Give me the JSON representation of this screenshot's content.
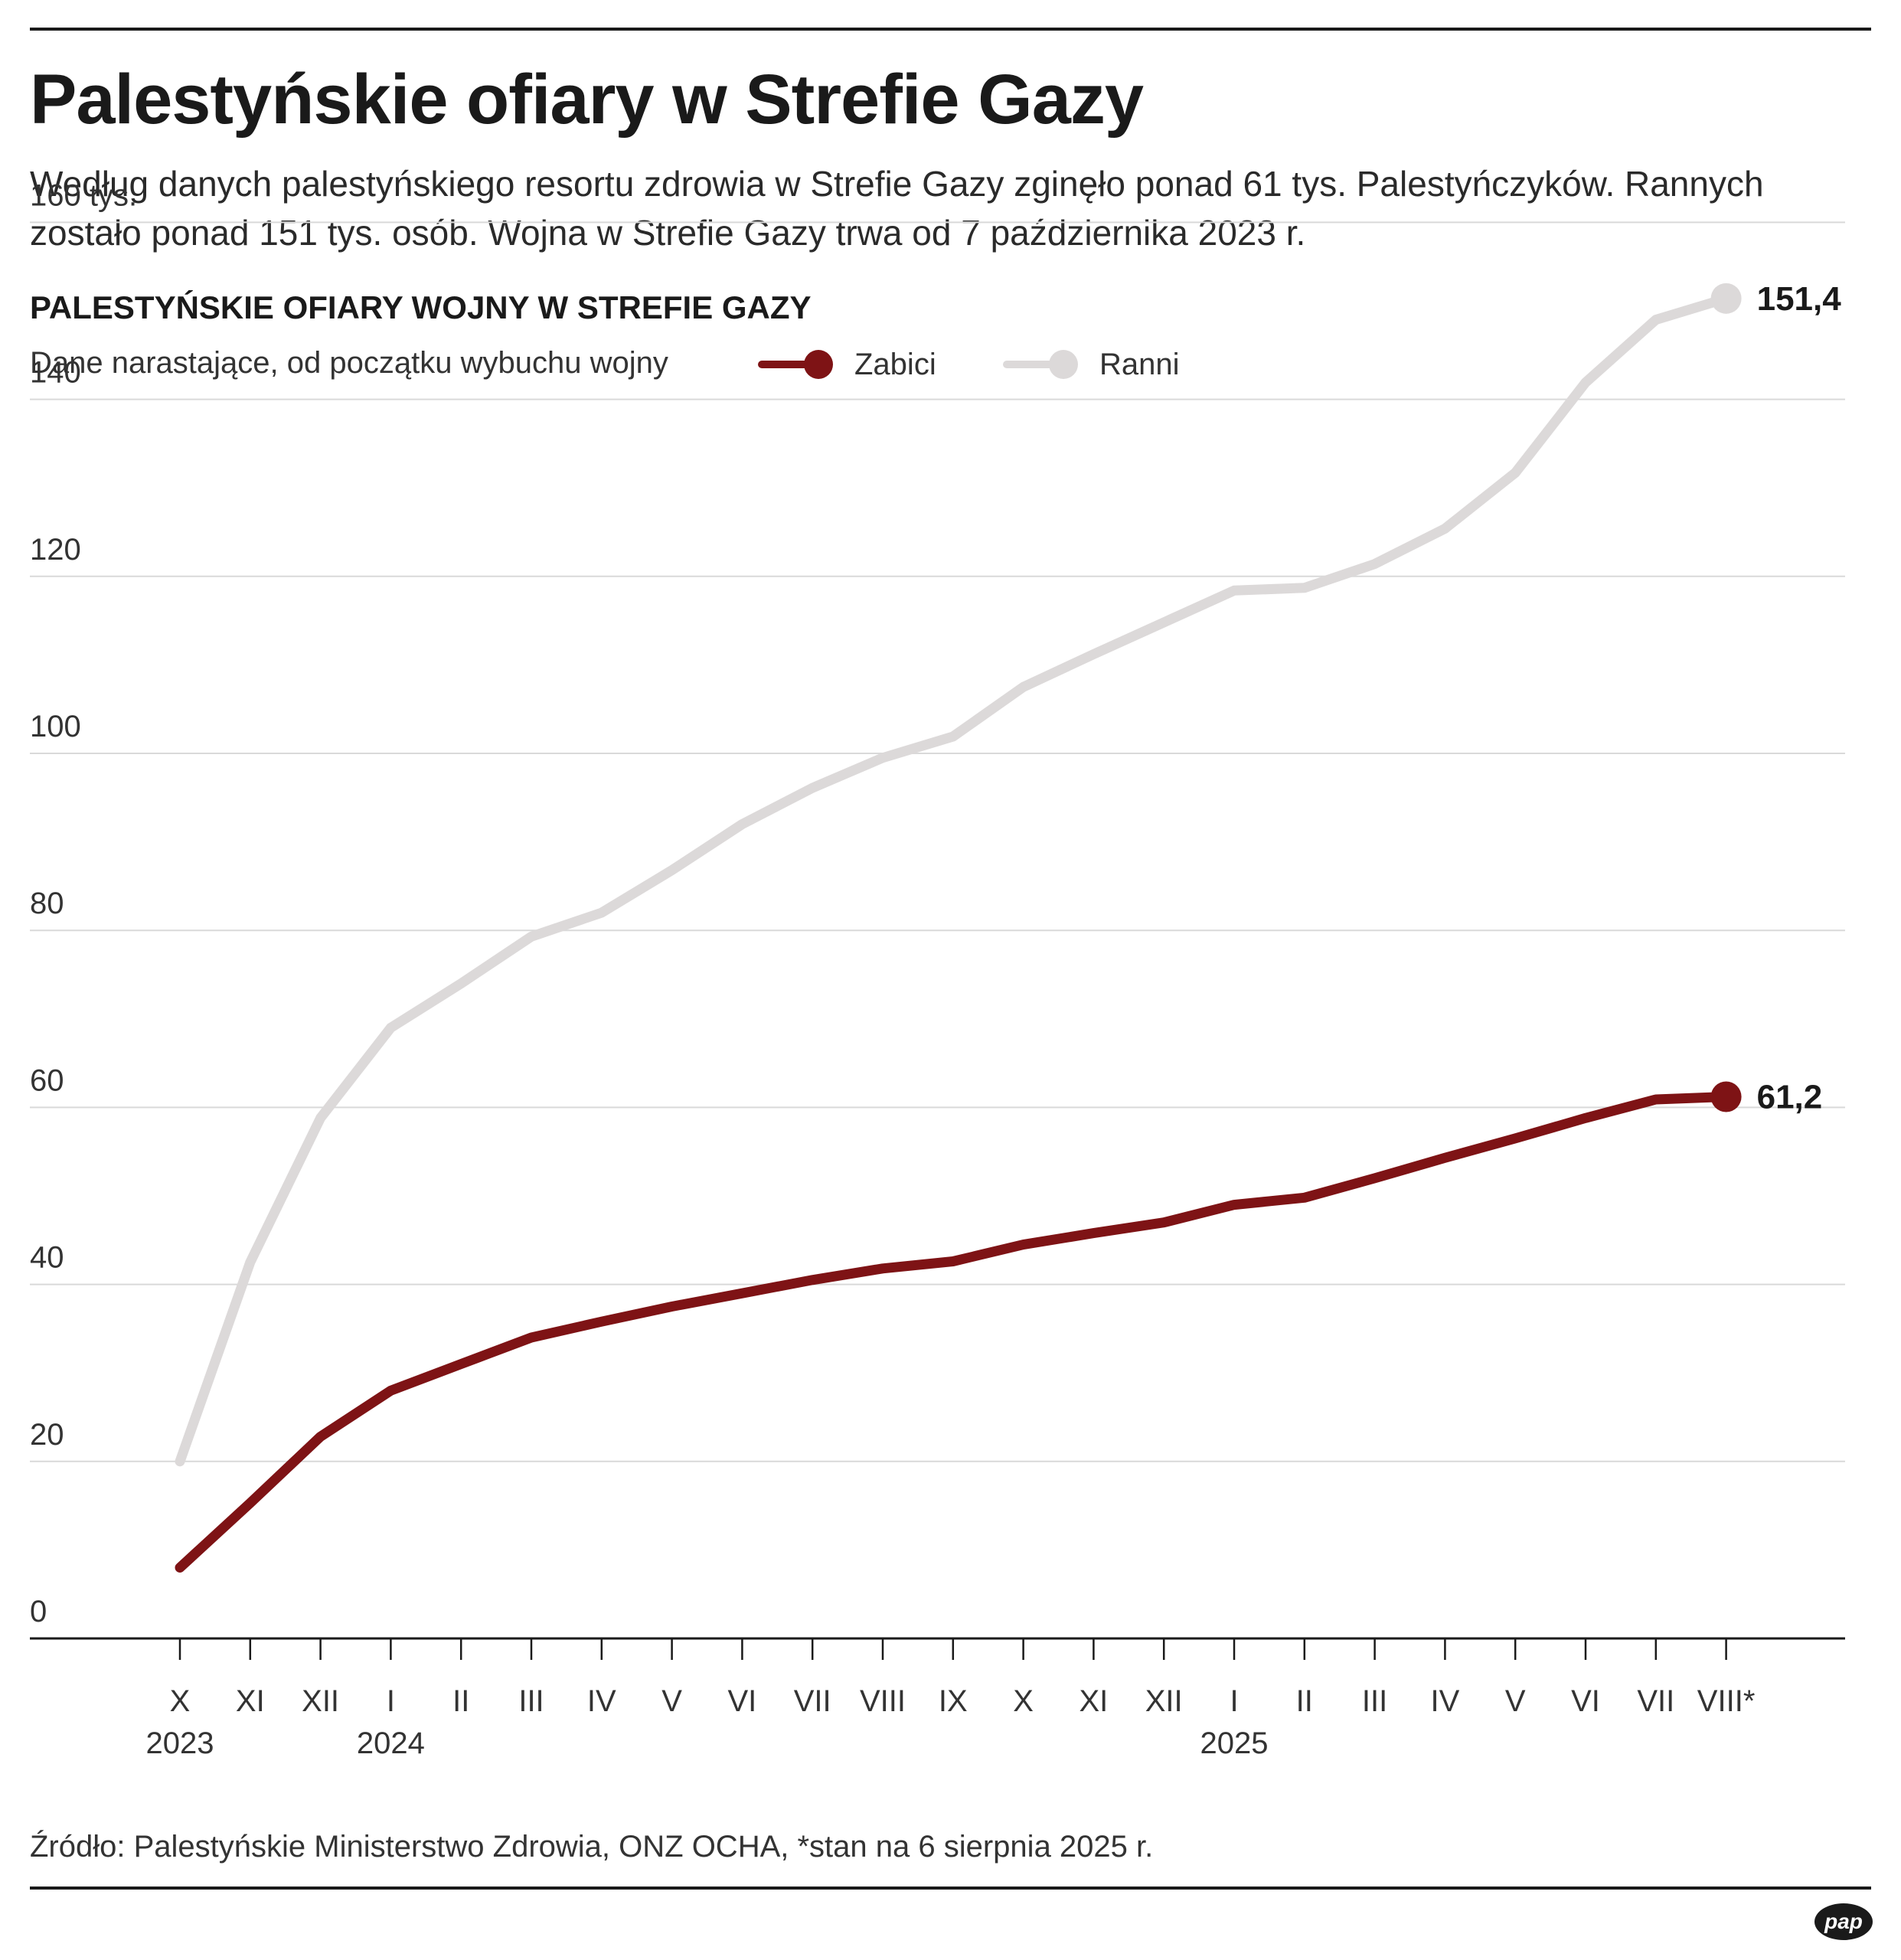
{
  "headline": "Palestyńskie ofiary w Strefie Gazy",
  "lead": "Według danych palestyńskiego resortu zdrowia w Strefie Gazy zginęło ponad 61 tys. Palestyńczyków. Rannych zostało ponad 151 tys. osób. Wojna w Strefie Gazy trwa od 7 października 2023 r.",
  "source": "Źródło: Palestyńskie Ministerstwo Zdrowia, ONZ OCHA, *stan na 6 sierpnia 2025 r.",
  "logo_text": "pap",
  "chart_data": {
    "type": "line",
    "title": "PALESTYŃSKIE OFIARY WOJNY W STREFIE GAZY",
    "subtitle": "Dane narastające, od początku wybuchu wojny",
    "ylim": [
      0,
      160
    ],
    "yticks": [
      {
        "value": 0,
        "label": "0"
      },
      {
        "value": 20,
        "label": "20"
      },
      {
        "value": 40,
        "label": "40"
      },
      {
        "value": 60,
        "label": "60"
      },
      {
        "value": 80,
        "label": "80"
      },
      {
        "value": 100,
        "label": "100"
      },
      {
        "value": 120,
        "label": "120"
      },
      {
        "value": 140,
        "label": "140"
      },
      {
        "value": 160,
        "label": "160 tys."
      }
    ],
    "categories": [
      "X",
      "XI",
      "XII",
      "I",
      "II",
      "III",
      "IV",
      "V",
      "VI",
      "VII",
      "VIII",
      "IX",
      "X",
      "XI",
      "XII",
      "I",
      "II",
      "III",
      "IV",
      "V",
      "VI",
      "VII",
      "VIII*"
    ],
    "year_labels": [
      {
        "index": 0,
        "label": "2023"
      },
      {
        "index": 3,
        "label": "2024"
      },
      {
        "index": 15,
        "label": "2025"
      }
    ],
    "grid": true,
    "legend_position": "top",
    "series": [
      {
        "name": "Ranni",
        "color": "#dcd9d9",
        "values": [
          20.0,
          42.5,
          58.8,
          69.0,
          74.0,
          79.3,
          82.0,
          86.8,
          92.0,
          96.1,
          99.5,
          101.9,
          107.5,
          111.2,
          114.8,
          118.4,
          118.7,
          121.4,
          125.4,
          131.7,
          141.9,
          149.0,
          151.4
        ],
        "end_label": "151,4"
      },
      {
        "name": "Zabici",
        "color": "#7e1315",
        "values": [
          8.0,
          15.3,
          22.8,
          28.0,
          31.0,
          34.0,
          35.8,
          37.5,
          39.0,
          40.5,
          41.8,
          42.6,
          44.5,
          45.8,
          47.0,
          49.0,
          49.8,
          52.0,
          54.3,
          56.5,
          58.8,
          60.9,
          61.2
        ],
        "end_label": "61,2"
      }
    ]
  }
}
